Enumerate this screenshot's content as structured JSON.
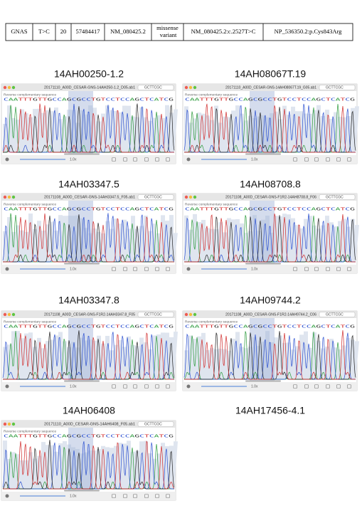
{
  "table": {
    "rows": [
      [
        "GNAS",
        "T>C",
        "20",
        "57484417",
        "NM_080425.2",
        "missense variant",
        "NM_080425.2:c.2527T>C",
        "NP_536350.2:p.Cys843Arg"
      ]
    ]
  },
  "panels": [
    {
      "label": "14AH00250-1.2",
      "window_title": "20171110_A00D_CESAR-GNS-14AH250-1.2_D05.ab1",
      "search": "GCTTCGC",
      "subtitle": "Reverse complementary sequence",
      "sequence": "CAATTTGTTGCCAGCGCCTGTCCTCCAGCTCATCG",
      "zoom": "1.0x"
    },
    {
      "label": "14AH08067T.19",
      "window_title": "20171110_A00D_CESAR-GNS-14AH08067T.19_G05.ab1",
      "search": "GCTTCGC",
      "subtitle": "Reverse complementary sequence",
      "sequence": "CAATTTGTTGCCAGCGCCTGTCCTCCAGCTCATCG",
      "zoom": "1.0x"
    },
    {
      "label": "14AH03347.5",
      "window_title": "20171108_A00D_CESAR-GNS-14AH3347.5_F05.ab1",
      "search": "GCTTCGC",
      "subtitle": "Reverse complementary sequence",
      "sequence": "CAATTTGTTGCCAGCGCCTGTCCTCCAGCTCATCG",
      "zoom": "1.0x"
    },
    {
      "label": "14AH08708.8",
      "window_title": "20171108_A00D_CESAR-GNS-F1R2-14AH8708.8_F06",
      "search": "GCTTCGC",
      "subtitle": "Reverse complementary sequence",
      "sequence": "CAATTTGTTGCCAGCGCCTGTCCTCCAGCTCATCG",
      "zoom": "1.0x"
    },
    {
      "label": "14AH03347.8",
      "window_title": "20171108_A00D_CESAR-GNS-F1R2-14AH3347.8_F05",
      "search": "GCTTCGC",
      "subtitle": "Reverse complementary sequence",
      "sequence": "CAATTTGTTGCCAGCGCCTGTCCTCCAGCTCATCG",
      "zoom": "1.0x"
    },
    {
      "label": "14AH09744.2",
      "window_title": "20171108_A00D_CESAR-GNS-F1R2-14AH9744.2_C06",
      "search": "GCTTCGC",
      "subtitle": "Reverse complementary sequence",
      "sequence": "CAATTTGTTGCCAGCGCCTGTCCTCCAGCTCATCG",
      "zoom": "1.0x"
    },
    {
      "label": "14AH06408",
      "window_title": "20171110_A00D_CESAR-GNS-14AH6408_F05.ab1",
      "search": "GCTTCGC",
      "subtitle": "Reverse complementary sequence",
      "sequence": "CAATTTGTTGCCAGCGCCTGTCCTCCAGCTCATCG",
      "zoom": "1.0x"
    },
    {
      "label": "14AH17456-4.1"
    }
  ]
}
